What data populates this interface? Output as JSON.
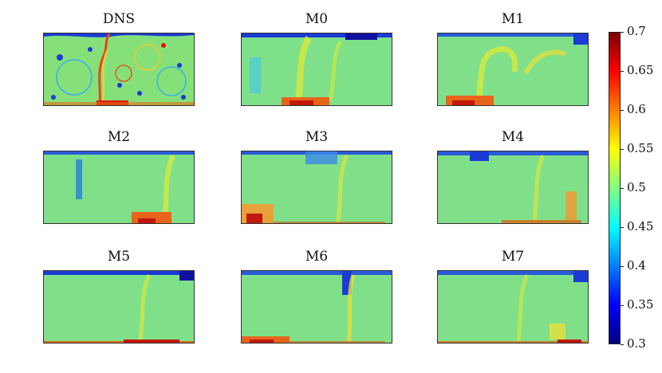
{
  "chart_data": {
    "type": "heatmap",
    "panels": [
      {
        "title": "DNS"
      },
      {
        "title": "M0"
      },
      {
        "title": "M1"
      },
      {
        "title": "M2"
      },
      {
        "title": "M3"
      },
      {
        "title": "M4"
      },
      {
        "title": "M5"
      },
      {
        "title": "M6"
      },
      {
        "title": "M7"
      }
    ],
    "colorbar": {
      "min": 0.3,
      "max": 0.7,
      "ticks": [
        "0.7",
        "0.65",
        "0.6",
        "0.55",
        "0.5",
        "0.45",
        "0.4",
        "0.35",
        "0.3"
      ],
      "colormap": "jet"
    },
    "colors": {
      "background_field": "#7fe08a",
      "hot": "#c81e0a",
      "cold": "#1414b4"
    }
  }
}
